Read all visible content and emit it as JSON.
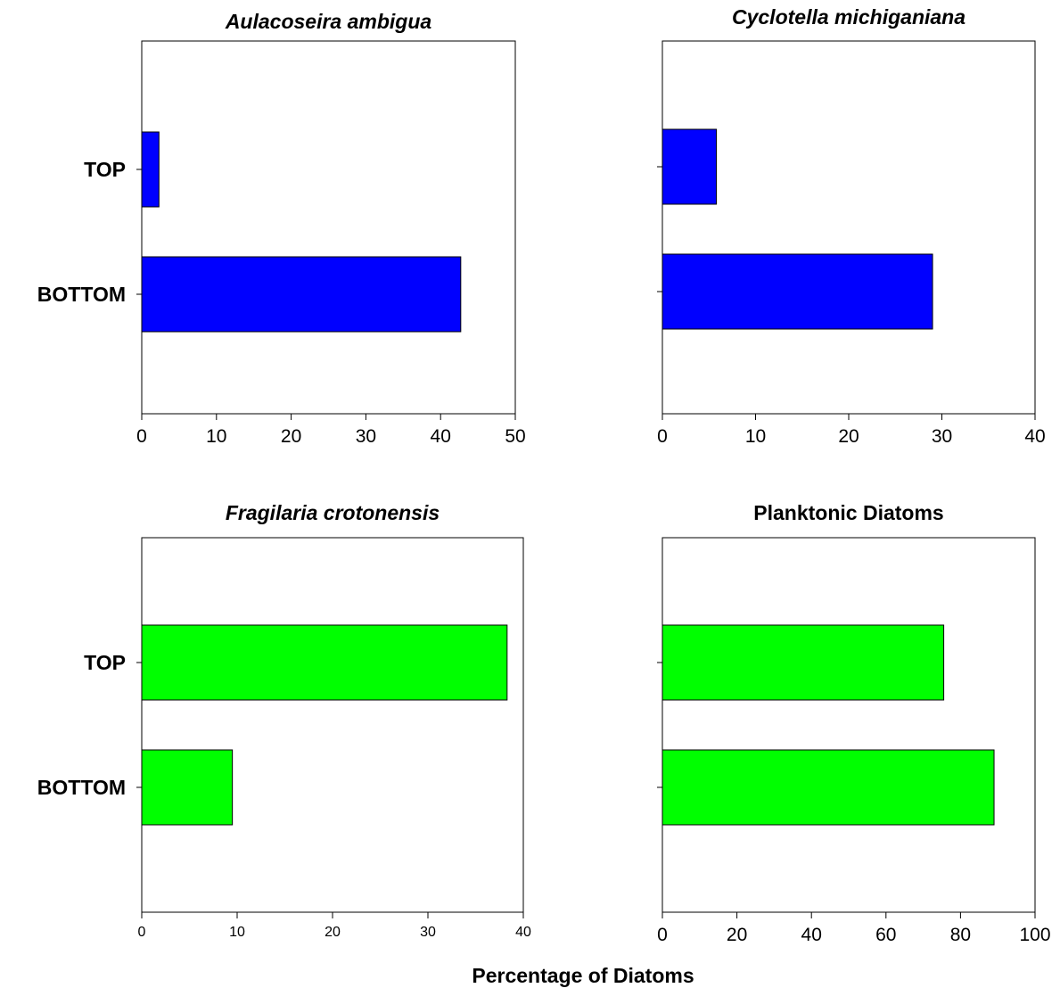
{
  "figure": {
    "xlabel": "Percentage of Diatoms"
  },
  "chart_data": [
    {
      "type": "bar",
      "orientation": "horizontal",
      "title": "Aulacoseira ambigua",
      "title_style": "italic",
      "categories": [
        "TOP",
        "BOTTOM"
      ],
      "values": [
        2.3,
        42.7
      ],
      "xlim": [
        0,
        50
      ],
      "xticks": [
        0,
        10,
        20,
        30,
        40,
        50
      ],
      "show_category_labels": true,
      "bar_color": "#0000ff",
      "grid": false
    },
    {
      "type": "bar",
      "orientation": "horizontal",
      "title": "Cyclotella michiganiana",
      "title_style": "italic",
      "categories": [
        "TOP",
        "BOTTOM"
      ],
      "values": [
        5.8,
        29.0
      ],
      "xlim": [
        0,
        40
      ],
      "xticks": [
        0,
        10,
        20,
        30,
        40
      ],
      "show_category_labels": false,
      "bar_color": "#0000ff",
      "grid": false
    },
    {
      "type": "bar",
      "orientation": "horizontal",
      "title": "Fragilaria crotonensis",
      "title_style": "italic",
      "categories": [
        "TOP",
        "BOTTOM"
      ],
      "values": [
        38.3,
        9.5
      ],
      "xlim": [
        0,
        40
      ],
      "xticks": [
        0,
        10,
        20,
        30,
        40
      ],
      "show_category_labels": true,
      "bar_color": "#00ff00",
      "grid": false
    },
    {
      "type": "bar",
      "orientation": "horizontal",
      "title": "Planktonic Diatoms",
      "title_style": "normal",
      "categories": [
        "TOP",
        "BOTTOM"
      ],
      "values": [
        75.5,
        89.0
      ],
      "xlim": [
        0,
        100
      ],
      "xticks": [
        0,
        20,
        40,
        60,
        80,
        100
      ],
      "show_category_labels": false,
      "bar_color": "#00ff00",
      "grid": false
    }
  ]
}
